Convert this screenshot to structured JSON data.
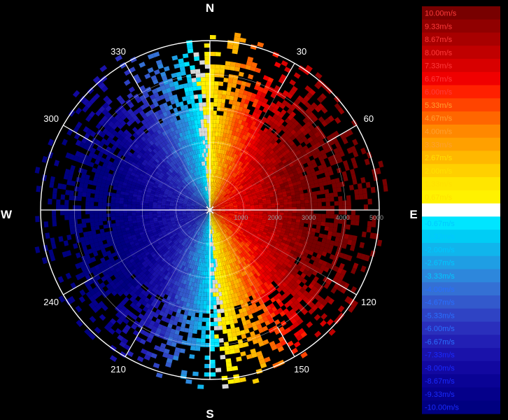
{
  "chart_data": {
    "type": "ppi-radial-velocity",
    "compass": [
      "N",
      "E",
      "S",
      "W"
    ],
    "angle_labels": [
      "30",
      "60",
      "120",
      "150",
      "210",
      "240",
      "300",
      "330"
    ],
    "angles_deg": [
      30,
      60,
      120,
      150,
      210,
      240,
      300,
      330
    ],
    "range_labels": [
      "1000",
      "2000",
      "3000",
      "4000",
      "5000"
    ],
    "range_values": [
      1000,
      2000,
      3000,
      4000,
      5000
    ],
    "range_max": 5000,
    "velocity_range": [
      -10,
      10
    ],
    "colorbar": {
      "labels": [
        "10.00m/s",
        "9.33m/s",
        "8.67m/s",
        "8.00m/s",
        "7.33m/s",
        "6.67m/s",
        "6.00m/s",
        "5.33m/s",
        "4.67m/s",
        "4.00m/s",
        "3.33m/s",
        "2.67m/s",
        "2.00m/s",
        "1.33m/s",
        "0.67m/s",
        "0.00m/s",
        "-0.67m/s",
        "-1.33m/s",
        "-2.00m/s",
        "-2.67m/s",
        "-3.33m/s",
        "-4.00m/s",
        "-4.67m/s",
        "-5.33m/s",
        "-6.00m/s",
        "-6.67m/s",
        "-7.33m/s",
        "-8.00m/s",
        "-8.67m/s",
        "-9.33m/s",
        "-10.00m/s"
      ],
      "values": [
        10,
        9.33,
        8.67,
        8,
        7.33,
        6.67,
        6,
        5.33,
        4.67,
        4,
        3.33,
        2.67,
        2,
        1.33,
        0.67,
        0,
        -0.67,
        -1.33,
        -2,
        -2.67,
        -3.33,
        -4,
        -4.67,
        -5.33,
        -6,
        -6.67,
        -7.33,
        -8,
        -8.67,
        -9.33,
        -10
      ],
      "colors": [
        "#780000",
        "#900000",
        "#a80000",
        "#c00000",
        "#d80000",
        "#f00000",
        "#ff2000",
        "#ff4400",
        "#ff6600",
        "#ff8800",
        "#ffa000",
        "#ffb800",
        "#ffd000",
        "#ffe600",
        "#fff200",
        "#ffffff",
        "#00e5ff",
        "#00cdf5",
        "#10b5ec",
        "#1f9ee4",
        "#2d87dc",
        "#3470d4",
        "#3359cc",
        "#2f43c4",
        "#2a2fbc",
        "#221fb4",
        "#1a12aa",
        "#1208a0",
        "#0a0395",
        "#05008a",
        "#000080"
      ]
    },
    "colors": {
      "grid": "#ffffff",
      "background": "#000000"
    }
  }
}
